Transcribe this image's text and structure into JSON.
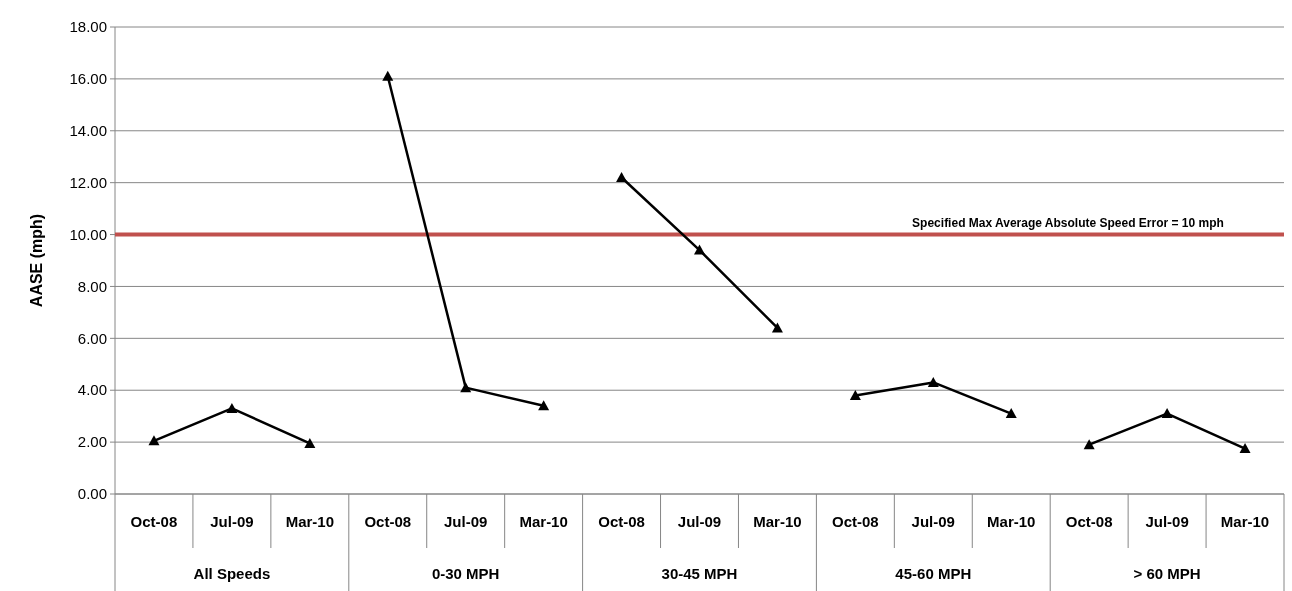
{
  "chart_data": {
    "type": "line",
    "ylabel": "AASE (mph)",
    "categories": [
      "Oct-08",
      "Jul-09",
      "Mar-10",
      "Oct-08",
      "Jul-09",
      "Mar-10",
      "Oct-08",
      "Jul-09",
      "Mar-10",
      "Oct-08",
      "Jul-09",
      "Mar-10",
      "Oct-08",
      "Jul-09",
      "Mar-10"
    ],
    "series": [
      {
        "color": "#000000",
        "values": [
          2.05,
          3.3,
          1.95,
          null,
          null,
          null,
          null,
          null,
          null,
          null,
          null,
          null,
          null,
          null,
          null
        ]
      },
      {
        "color": "#000000",
        "values": [
          null,
          null,
          null,
          16.1,
          4.1,
          3.4,
          null,
          null,
          null,
          null,
          null,
          null,
          null,
          null,
          null
        ]
      },
      {
        "color": "#000000",
        "values": [
          null,
          null,
          null,
          null,
          null,
          null,
          12.2,
          9.4,
          6.4,
          null,
          null,
          null,
          null,
          null,
          null
        ]
      },
      {
        "color": "#000000",
        "values": [
          null,
          null,
          null,
          null,
          null,
          null,
          null,
          null,
          null,
          3.8,
          4.3,
          3.1,
          null,
          null,
          null
        ]
      },
      {
        "color": "#000000",
        "values": [
          null,
          null,
          null,
          null,
          null,
          null,
          null,
          null,
          null,
          null,
          null,
          null,
          1.9,
          3.1,
          1.75
        ]
      }
    ],
    "ylim": [
      0,
      18
    ],
    "yticks": [
      {
        "value": 0,
        "label": "0.00"
      },
      {
        "value": 2,
        "label": "2.00"
      },
      {
        "value": 4,
        "label": "4.00"
      },
      {
        "value": 6,
        "label": "6.00"
      },
      {
        "value": 8,
        "label": "8.00"
      },
      {
        "value": 10,
        "label": "10.00"
      },
      {
        "value": 12,
        "label": "12.00"
      },
      {
        "value": 14,
        "label": "14.00"
      },
      {
        "value": 16,
        "label": "16.00"
      },
      {
        "value": 18,
        "label": "18.00"
      }
    ],
    "grid": "y",
    "marker": "triangle",
    "line_style": "solid",
    "ref_lines": [
      {
        "axis": "y",
        "value": 10,
        "label": "Specified Max Average Absolute Speed Error = 10 mph",
        "color": "#c0504d"
      }
    ],
    "annotations": [
      "All Speeds",
      "0-30 MPH",
      "30-45 MPH",
      "45-60 MPH",
      "> 60 MPH"
    ]
  }
}
